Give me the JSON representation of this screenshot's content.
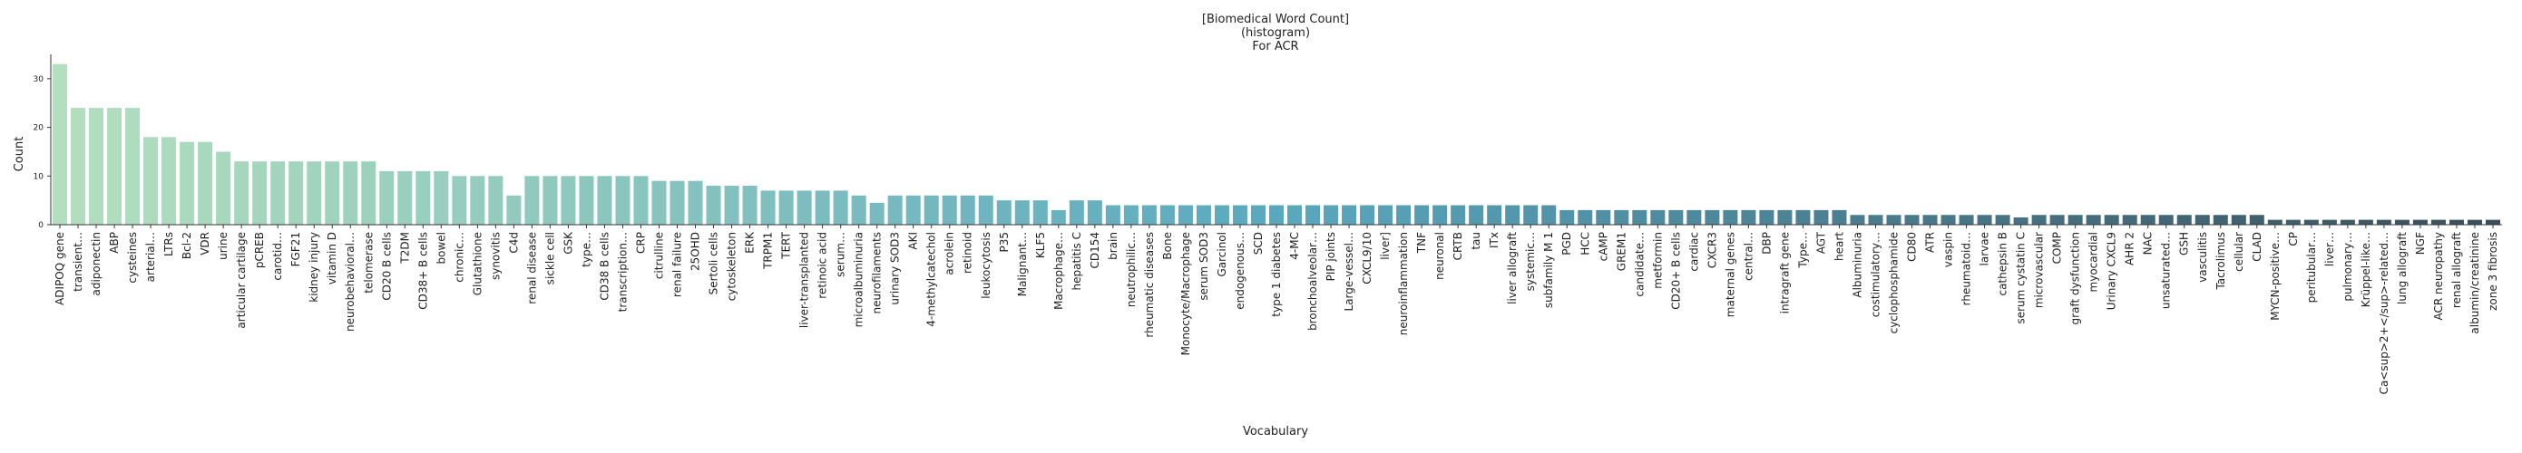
{
  "chart_data": {
    "type": "bar",
    "title_lines": [
      "[Biomedical Word Count]",
      "(histogram)",
      "For ACR"
    ],
    "xlabel": "Vocabulary",
    "ylabel": "Count",
    "ylim": [
      0,
      35
    ],
    "yticks": [
      0,
      10,
      20,
      30
    ],
    "grid": false,
    "color_start": "#b3dfbe",
    "color_mid": "#5aa8bf",
    "color_end": "#3a4f5b",
    "categories": [
      "ADIPOQ gene",
      "transient…",
      "adiponectin",
      "ABP",
      "cysteines",
      "arterial…",
      "LTRs",
      "Bcl-2",
      "VDR",
      "urine",
      "articular cartilage",
      "pCREB",
      "carotid…",
      "FGF21",
      "kidney injury",
      "vitamin D",
      "neurobehavioral…",
      "telomerase",
      "CD20 B cells",
      "T2DM",
      "CD38+ B cells",
      "bowel",
      "chronic…",
      "Glutathione",
      "synovitis",
      "C4d",
      "renal disease",
      "sickle cell",
      "GSK",
      "type…",
      "CD38 B cells",
      "transcription…",
      "CRP",
      "citrulline",
      "renal failure",
      "25OHD",
      "Sertoli cells",
      "cytoskeleton",
      "ERK",
      "TRPM1",
      "TERT",
      "liver-transplanted",
      "retinoic acid",
      "serum…",
      "microalbuminuria",
      "neurofilaments",
      "urinary SOD3",
      "AKI",
      "4-methylcatechol",
      "acrolein",
      "retinoid",
      "leukocytosis",
      "P35",
      "Malignant…",
      "KLF5",
      "Macrophage…",
      "hepatitis C",
      "CD154",
      "brain",
      "neutrophilic…",
      "rheumatic diseases",
      "Bone",
      "Monocyte/Macrophage",
      "serum SOD3",
      "Garcinol",
      "endogenous…",
      "SCD",
      "type 1 diabetes",
      "4-MC",
      "bronchoalveolar…",
      "PIP joints",
      "Large-vessel…",
      "CXCL9/10",
      "liver]",
      "neuroinflammation",
      "TNF",
      "neuronal",
      "CRTB",
      "tau",
      "ITx",
      "liver allograft",
      "systemic…",
      "subfamily M 1",
      "PGD",
      "HCC",
      "cAMP",
      "GREM1",
      "candidate…",
      "metformin",
      "CD20+ B cells",
      "cardiac",
      "CXCR3",
      "maternal genes",
      "central…",
      "DBP",
      "intragraft gene",
      "Type…",
      "AGT",
      "heart",
      "Albuminuria",
      "costimulatory…",
      "cyclophosphamide",
      "CD80",
      "ATR",
      "vaspin",
      "rheumatoid…",
      "larvae",
      "cathepsin B",
      "serum cystatin C",
      "microvascular",
      "COMP",
      "graft dysfunction",
      "myocardial",
      "Urinary CXCL9",
      "AHR 2",
      "NAC",
      "unsaturated…",
      "GSH",
      "vasculitis",
      "Tacrolimus",
      "cellular",
      "CLAD",
      "MYCN-positive…",
      "CP",
      "peritubular…",
      "liver…",
      "pulmonary…",
      "Krüppel-like…",
      "Ca<sup>2+</sup>-related…",
      "lung allograft",
      "NGF",
      "ACR neuropathy",
      "renal allograft",
      "albumin/creatinine",
      "zone 3 fibrosis"
    ],
    "values": [
      33,
      24,
      24,
      24,
      24,
      18,
      18,
      17,
      17,
      15,
      13,
      13,
      13,
      13,
      13,
      13,
      13,
      13,
      11,
      11,
      11,
      11,
      10,
      10,
      10,
      6,
      10,
      10,
      10,
      10,
      10,
      10,
      10,
      9,
      9,
      9,
      8,
      8,
      8,
      7,
      7,
      7,
      7,
      7,
      6,
      4.5,
      6,
      6,
      6,
      6,
      6,
      6,
      5,
      5,
      5,
      3,
      5,
      5,
      4,
      4,
      4,
      4,
      4,
      4,
      4,
      4,
      4,
      4,
      4,
      4,
      4,
      4,
      4,
      4,
      4,
      4,
      4,
      4,
      4,
      4,
      4,
      4,
      4,
      3,
      3,
      3,
      3,
      3,
      3,
      3,
      3,
      3,
      3,
      3,
      3,
      3,
      3,
      3,
      3,
      2,
      2,
      2,
      2,
      2,
      2,
      2,
      2,
      2,
      1.5,
      2,
      2,
      2,
      2,
      2,
      2,
      2,
      2,
      2,
      2,
      2,
      2,
      2,
      1,
      1,
      1,
      1,
      1,
      1,
      1,
      1,
      1,
      1,
      1,
      1,
      1
    ]
  }
}
